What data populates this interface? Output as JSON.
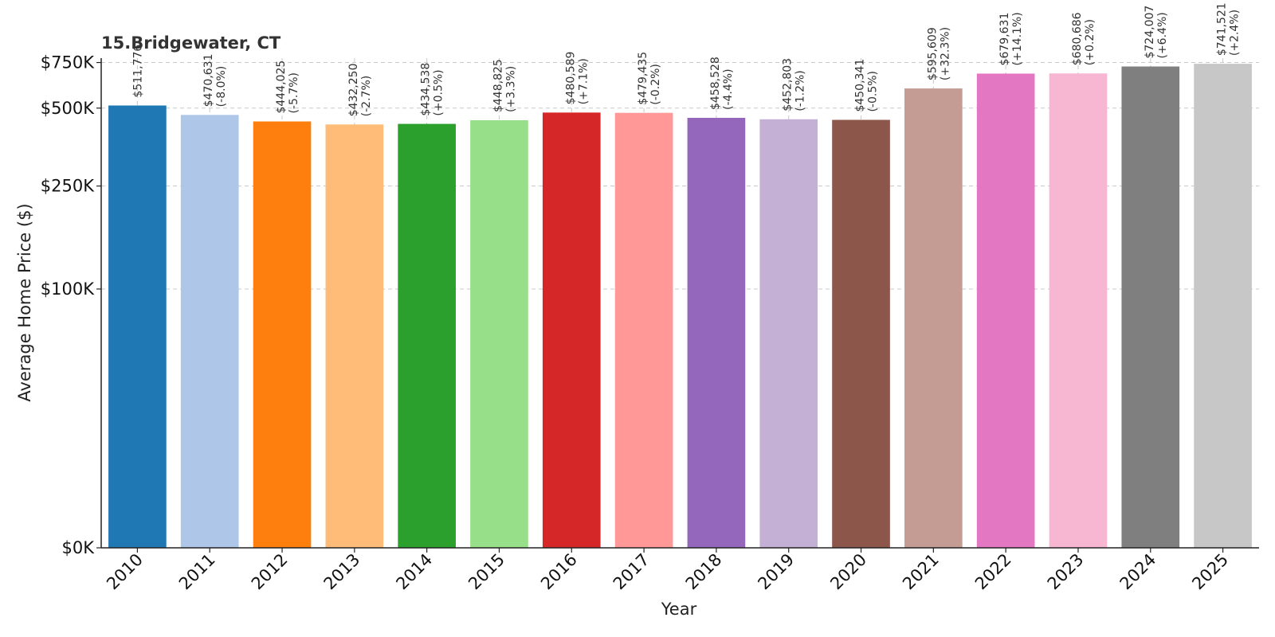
{
  "chart_data": {
    "type": "bar",
    "title": "15.Bridgewater, CT",
    "xlabel": "Year",
    "ylabel": "Average Home Price ($)",
    "categories": [
      "2010",
      "2011",
      "2012",
      "2013",
      "2014",
      "2015",
      "2016",
      "2017",
      "2018",
      "2019",
      "2020",
      "2021",
      "2022",
      "2023",
      "2024",
      "2025"
    ],
    "values": [
      511776,
      470631,
      444025,
      432250,
      434538,
      448825,
      480589,
      479435,
      458528,
      452803,
      450341,
      595609,
      679631,
      680686,
      724007,
      741521
    ],
    "value_labels": [
      "$511,776",
      "$470,631",
      "$444,025",
      "$432,250",
      "$434,538",
      "$448,825",
      "$480,589",
      "$479,435",
      "$458,528",
      "$452,803",
      "$450,341",
      "$595,609",
      "$679,631",
      "$680,686",
      "$724,007",
      "$741,521"
    ],
    "change_labels": [
      "",
      "(-8.0%)",
      "(-5.7%)",
      "(-2.7%)",
      "(+0.5%)",
      "(+3.3%)",
      "(+7.1%)",
      "(-0.2%)",
      "(-4.4%)",
      "(-1.2%)",
      "(-0.5%)",
      "(+32.3%)",
      "(+14.1%)",
      "(+0.2%)",
      "(+6.4%)",
      "(+2.4%)"
    ],
    "colors": [
      "#1f77b4",
      "#aec7e8",
      "#ff7f0e",
      "#ffbb78",
      "#2ca02c",
      "#98df8a",
      "#d62728",
      "#ff9896",
      "#9467bd",
      "#c5b0d5",
      "#8c564b",
      "#c49c94",
      "#e377c2",
      "#f7b6d2",
      "#7f7f7f",
      "#c7c7c7"
    ],
    "yscale": "symlog",
    "ylim": [
      0,
      780000
    ],
    "yticks": [
      0,
      100000,
      250000,
      500000,
      750000
    ],
    "ytick_labels": [
      "$0K",
      "$100K",
      "$250K",
      "$500K",
      "$750K"
    ],
    "grid": true
  }
}
